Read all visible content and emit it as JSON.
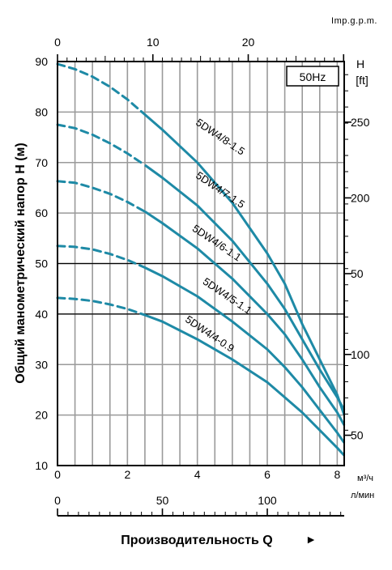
{
  "chart_data": {
    "type": "line",
    "freq_badge": "50Hz",
    "ylabel": "Общий манометрический напор H (м)",
    "xlabel": "Производительность Q",
    "x_arrow": "►",
    "x_unit": "м³/ч",
    "x2_unit": "л/мин",
    "top_unit": "Imp.g.p.m.",
    "right_unit_line1": "H",
    "right_unit_line2": "[ft]",
    "xlim": [
      0,
      8.2
    ],
    "ylim": [
      10,
      90
    ],
    "x_ticks": [
      "0",
      "2",
      "4",
      "6",
      "8"
    ],
    "x_tick_values": [
      0,
      2,
      4,
      6,
      8
    ],
    "y_ticks": [
      "10",
      "20",
      "30",
      "40",
      "50",
      "60",
      "70",
      "80",
      "90"
    ],
    "y_tick_values": [
      10,
      20,
      30,
      40,
      50,
      60,
      70,
      80,
      90
    ],
    "lpm_ticks": [
      "0",
      "50",
      "100"
    ],
    "lpm_tick_values": [
      0,
      50,
      100
    ],
    "gpm_ticks": [
      "0",
      "10",
      "20"
    ],
    "gpm_tick_values": [
      0,
      10,
      20
    ],
    "ft_ticks": [
      "250",
      "200",
      "50",
      "100",
      "50"
    ],
    "ft_tick_y": [
      78,
      63,
      48,
      32,
      16
    ],
    "series": [
      {
        "name": "5DW4/8-1.5",
        "label_pos": [
          4.6,
          74.5
        ],
        "dashed": [
          [
            0,
            89.5
          ],
          [
            0.5,
            88.5
          ],
          [
            1,
            87
          ],
          [
            1.5,
            85
          ],
          [
            2,
            82.5
          ],
          [
            2.5,
            79.5
          ]
        ],
        "solid": [
          [
            2.5,
            79.5
          ],
          [
            3,
            76.5
          ],
          [
            4,
            70
          ],
          [
            5,
            62
          ],
          [
            6,
            52
          ],
          [
            6.5,
            46
          ],
          [
            7,
            38
          ],
          [
            7.5,
            31
          ],
          [
            8,
            24
          ],
          [
            8.2,
            20
          ]
        ]
      },
      {
        "name": "5DW4/7-1.5",
        "label_pos": [
          4.6,
          64
        ],
        "dashed": [
          [
            0,
            77.5
          ],
          [
            0.5,
            76.8
          ],
          [
            1,
            75.5
          ],
          [
            1.5,
            73.8
          ],
          [
            2,
            71.8
          ],
          [
            2.5,
            69.5
          ]
        ],
        "solid": [
          [
            2.5,
            69.5
          ],
          [
            3,
            67
          ],
          [
            4,
            61.5
          ],
          [
            5,
            54.5
          ],
          [
            6,
            46
          ],
          [
            6.5,
            41
          ],
          [
            7,
            35
          ],
          [
            7.5,
            29
          ],
          [
            8,
            23.5
          ],
          [
            8.2,
            21
          ]
        ]
      },
      {
        "name": "5DW4/6-1.1",
        "label_pos": [
          4.5,
          53.5
        ],
        "dashed": [
          [
            0,
            66.3
          ],
          [
            0.5,
            66
          ],
          [
            1,
            65
          ],
          [
            1.5,
            63.8
          ],
          [
            2,
            62.2
          ],
          [
            2.5,
            60.3
          ]
        ],
        "solid": [
          [
            2.5,
            60.3
          ],
          [
            3,
            58
          ],
          [
            4,
            53
          ],
          [
            5,
            47
          ],
          [
            6,
            40
          ],
          [
            6.5,
            36
          ],
          [
            7,
            31
          ],
          [
            7.5,
            25.5
          ],
          [
            8,
            20.5
          ],
          [
            8.2,
            18
          ]
        ]
      },
      {
        "name": "5DW4/5-1.1",
        "label_pos": [
          4.8,
          43
        ],
        "dashed": [
          [
            0,
            53.5
          ],
          [
            0.5,
            53.3
          ],
          [
            1,
            52.8
          ],
          [
            1.5,
            51.9
          ],
          [
            2,
            50.7
          ],
          [
            2.5,
            49.2
          ]
        ],
        "solid": [
          [
            2.5,
            49.2
          ],
          [
            3,
            47.5
          ],
          [
            4,
            43.5
          ],
          [
            5,
            38.5
          ],
          [
            6,
            33
          ],
          [
            6.5,
            29.5
          ],
          [
            7,
            25.5
          ],
          [
            7.5,
            21
          ],
          [
            8,
            16.5
          ],
          [
            8.2,
            14.5
          ]
        ]
      },
      {
        "name": "5DW4/4-0.9",
        "label_pos": [
          4.3,
          35.5
        ],
        "dashed": [
          [
            0,
            43.2
          ],
          [
            0.5,
            43
          ],
          [
            1,
            42.6
          ],
          [
            1.5,
            41.9
          ],
          [
            2,
            41
          ],
          [
            2.5,
            39.8
          ]
        ],
        "solid": [
          [
            2.5,
            39.8
          ],
          [
            3,
            38.5
          ],
          [
            4,
            35
          ],
          [
            5,
            31
          ],
          [
            6,
            26.5
          ],
          [
            6.5,
            23.5
          ],
          [
            7,
            20.5
          ],
          [
            7.5,
            17
          ],
          [
            8,
            13.5
          ],
          [
            8.2,
            12
          ]
        ]
      }
    ]
  }
}
